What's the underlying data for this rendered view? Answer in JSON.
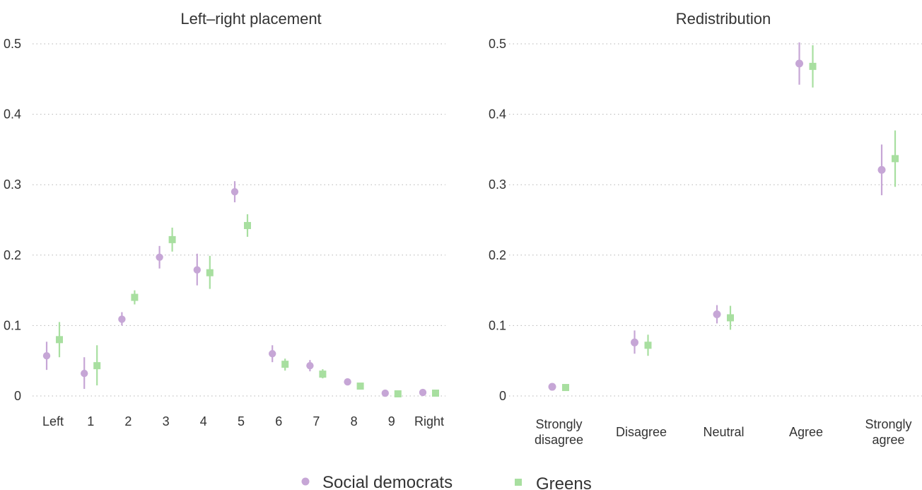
{
  "colors": {
    "social_democrats": "#c6a6d6",
    "greens": "#a8dfa0",
    "text": "#333333",
    "grid": "#b5b5b5"
  },
  "legend": {
    "items": [
      {
        "label": "Social democrats",
        "marker": "circle"
      },
      {
        "label": "Greens",
        "marker": "square"
      }
    ],
    "placement": "bottom-center"
  },
  "chart_data": [
    {
      "type": "scatter",
      "title": "Left–right placement",
      "categories": [
        "Left",
        "1",
        "2",
        "3",
        "4",
        "5",
        "6",
        "7",
        "8",
        "9",
        "Right"
      ],
      "ylim": [
        0,
        0.5
      ],
      "yticks": [
        0,
        0.1,
        0.2,
        0.3,
        0.4,
        0.5
      ],
      "ytick_labels": [
        "0",
        "0.1",
        "0.2",
        "0.3",
        "0.4",
        "0.5"
      ],
      "grid": "horizontal-dotted",
      "series": [
        {
          "name": "Social democrats",
          "marker": "circle",
          "values": [
            0.057,
            0.032,
            0.109,
            0.197,
            0.179,
            0.29,
            0.06,
            0.043,
            0.02,
            0.004,
            0.005
          ],
          "lower": [
            0.037,
            0.01,
            0.1,
            0.181,
            0.157,
            0.275,
            0.048,
            0.035,
            0.016,
            0.002,
            0.003
          ],
          "upper": [
            0.077,
            0.055,
            0.119,
            0.213,
            0.202,
            0.305,
            0.072,
            0.051,
            0.024,
            0.006,
            0.007
          ]
        },
        {
          "name": "Greens",
          "marker": "square",
          "values": [
            0.08,
            0.043,
            0.14,
            0.222,
            0.175,
            0.242,
            0.045,
            0.031,
            0.014,
            0.003,
            0.004
          ],
          "lower": [
            0.055,
            0.015,
            0.13,
            0.205,
            0.152,
            0.226,
            0.036,
            0.025,
            0.011,
            0.001,
            0.002
          ],
          "upper": [
            0.105,
            0.072,
            0.15,
            0.239,
            0.199,
            0.258,
            0.053,
            0.038,
            0.017,
            0.005,
            0.006
          ]
        }
      ]
    },
    {
      "type": "scatter",
      "title": "Redistribution",
      "categories": [
        "Strongly\ndisagree",
        "Disagree",
        "Neutral",
        "Agree",
        "Strongly\nagree"
      ],
      "ylim": [
        0,
        0.5
      ],
      "yticks": [
        0,
        0.1,
        0.2,
        0.3,
        0.4,
        0.5
      ],
      "ytick_labels": [
        "0",
        "0.1",
        "0.2",
        "0.3",
        "0.4",
        "0.5"
      ],
      "grid": "horizontal-dotted",
      "series": [
        {
          "name": "Social democrats",
          "marker": "circle",
          "values": [
            0.013,
            0.076,
            0.116,
            0.472,
            0.321
          ],
          "lower": [
            0.009,
            0.06,
            0.103,
            0.442,
            0.285
          ],
          "upper": [
            0.017,
            0.093,
            0.129,
            0.502,
            0.357
          ]
        },
        {
          "name": "Greens",
          "marker": "square",
          "values": [
            0.012,
            0.072,
            0.111,
            0.468,
            0.337
          ],
          "lower": [
            0.009,
            0.057,
            0.094,
            0.438,
            0.297
          ],
          "upper": [
            0.016,
            0.087,
            0.128,
            0.498,
            0.377
          ]
        }
      ]
    }
  ]
}
